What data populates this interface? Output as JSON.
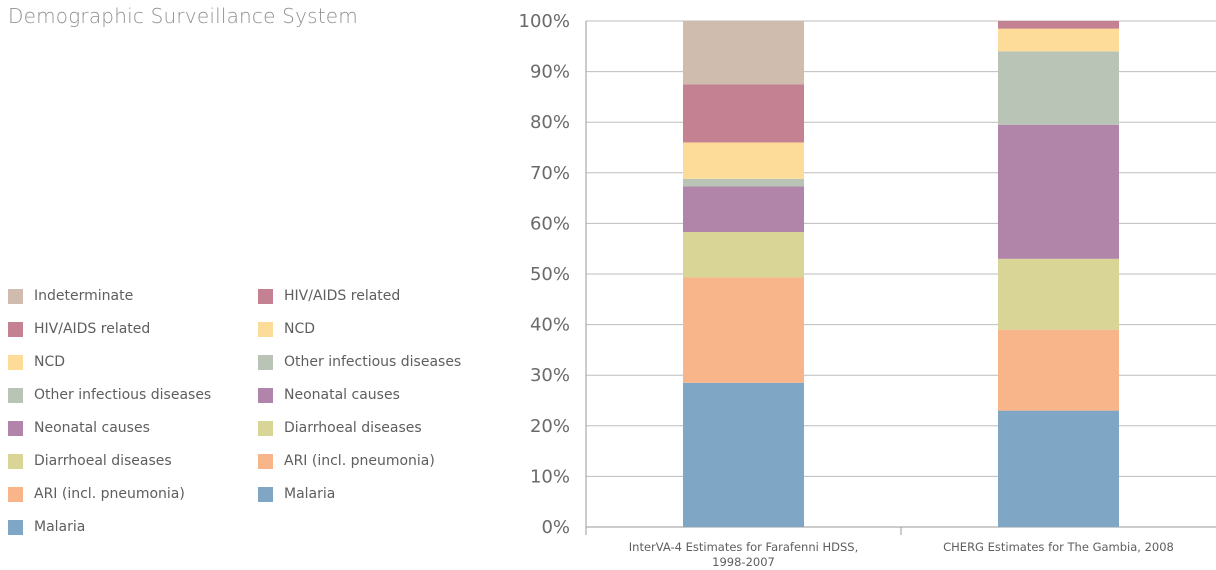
{
  "page": {
    "title": "Demographic Surveillance System"
  },
  "legend_left": [
    {
      "label": "Indeterminate",
      "color": "#d0bcae"
    },
    {
      "label": "HIV/AIDS related",
      "color": "#c38191"
    },
    {
      "label": "NCD",
      "color": "#fddb98"
    },
    {
      "label": "Other infectious diseases",
      "color": "#b9c4b7"
    },
    {
      "label": "Neonatal causes",
      "color": "#b085a9"
    },
    {
      "label": "Diarrhoeal diseases",
      "color": "#d8d596"
    },
    {
      "label": "ARI (incl. pneumonia)",
      "color": "#f8b589"
    },
    {
      "label": "Malaria",
      "color": "#7fa6c4"
    }
  ],
  "legend_right": [
    {
      "label": "HIV/AIDS related",
      "color": "#c38191"
    },
    {
      "label": "NCD",
      "color": "#fddb98"
    },
    {
      "label": "Other infectious diseases",
      "color": "#b9c4b7"
    },
    {
      "label": "Neonatal causes",
      "color": "#b085a9"
    },
    {
      "label": "Diarrhoeal diseases",
      "color": "#d8d596"
    },
    {
      "label": "ARI (incl. pneumonia)",
      "color": "#f8b589"
    },
    {
      "label": "Malaria",
      "color": "#7fa6c4"
    }
  ],
  "chart_data": {
    "type": "bar",
    "stacked": true,
    "categories": [
      "InterVA-4 Estimates for Farafenni HDSS, 1998-2007",
      "CHERG Estimates for The Gambia, 2008"
    ],
    "category_lines": [
      [
        "InterVA-4 Estimates for Farafenni HDSS,",
        "1998-2007"
      ],
      [
        "CHERG Estimates for The Gambia, 2008"
      ]
    ],
    "series": [
      {
        "name": "Malaria",
        "color": "#7fa6c4",
        "values": [
          28.5,
          23.0
        ]
      },
      {
        "name": "ARI (incl. pneumonia)",
        "color": "#f8b589",
        "values": [
          20.8,
          16.0
        ]
      },
      {
        "name": "Diarrhoeal diseases",
        "color": "#d8d596",
        "values": [
          9.0,
          14.0
        ]
      },
      {
        "name": "Neonatal causes",
        "color": "#b085a9",
        "values": [
          9.0,
          26.5
        ]
      },
      {
        "name": "Other infectious diseases",
        "color": "#b9c4b7",
        "values": [
          1.5,
          14.5
        ]
      },
      {
        "name": "NCD",
        "color": "#fddb98",
        "values": [
          7.2,
          4.5
        ]
      },
      {
        "name": "HIV/AIDS related",
        "color": "#c38191",
        "values": [
          11.5,
          1.5
        ]
      },
      {
        "name": "Indeterminate",
        "color": "#d0bcae",
        "values": [
          12.5,
          0
        ]
      }
    ],
    "yticks": [
      "0%",
      "10%",
      "20%",
      "30%",
      "40%",
      "50%",
      "60%",
      "70%",
      "80%",
      "90%",
      "100%"
    ],
    "ylim": [
      0,
      100
    ],
    "grid": true,
    "legend_position": "left"
  }
}
